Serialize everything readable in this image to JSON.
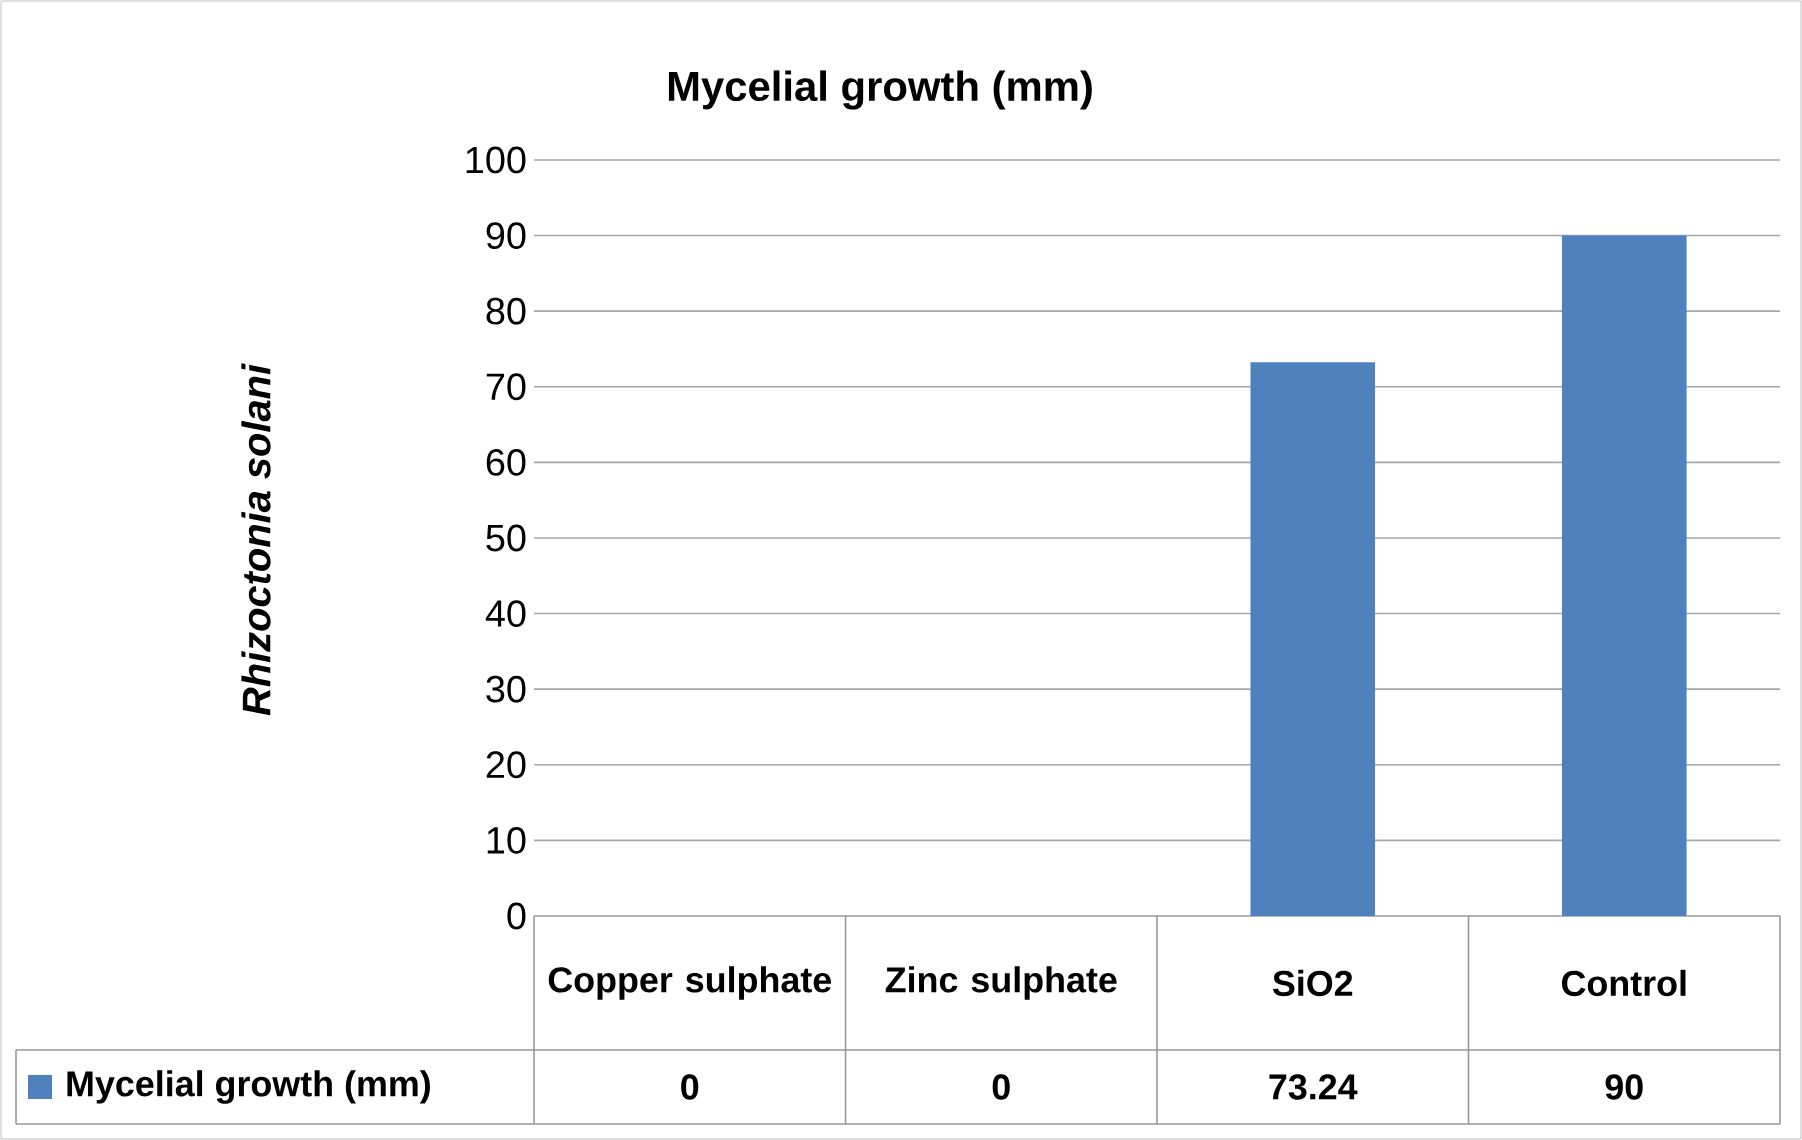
{
  "chart_data": {
    "type": "bar",
    "title": "Mycelial growth (mm)",
    "ylabel": "Rhizoctonia solani",
    "categories": [
      "Copper sulphate",
      "Zinc sulphate",
      "SiO2",
      "Control"
    ],
    "series": [
      {
        "name": "Mycelial growth (mm)",
        "color": "#4f81bd",
        "values": [
          0,
          0,
          73.24,
          90
        ]
      }
    ],
    "ylim": [
      0,
      100
    ],
    "yticks": [
      0,
      10,
      20,
      30,
      40,
      50,
      60,
      70,
      80,
      90,
      100
    ],
    "grid": "y",
    "legend": "bottom",
    "data_labels": true
  }
}
